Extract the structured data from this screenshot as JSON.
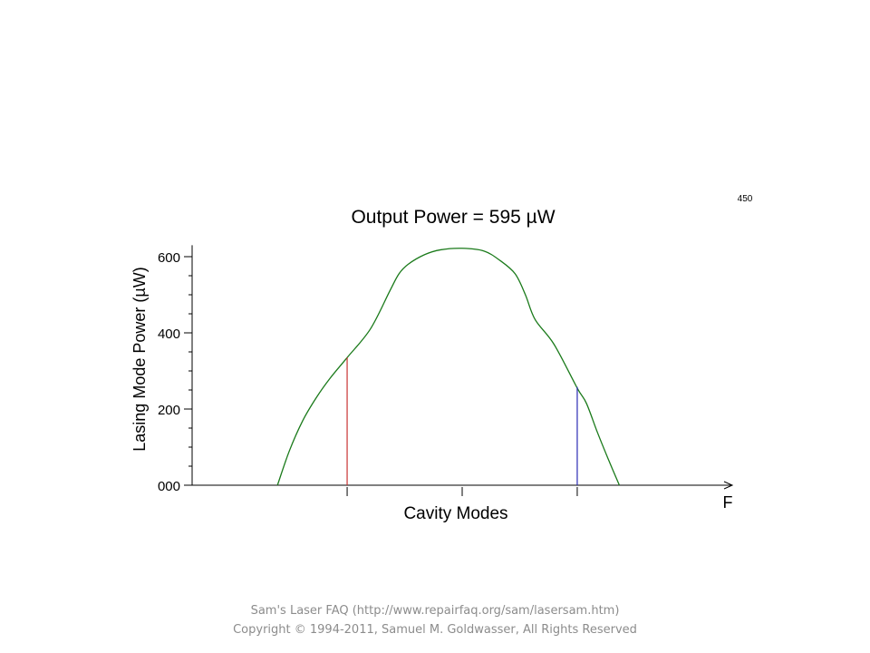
{
  "chart_data": {
    "type": "line",
    "title": "Output Power = 595 µW",
    "corner_label": "450",
    "ylabel": "Lasing Mode Power (µW)",
    "xlabel": "Cavity Modes",
    "x_axis_symbol": "F",
    "ylim": [
      0,
      630
    ],
    "xlim": [
      0,
      1
    ],
    "y_ticks": [
      {
        "value": 0,
        "label": "000"
      },
      {
        "value": 200,
        "label": "200"
      },
      {
        "value": 400,
        "label": "400"
      },
      {
        "value": 600,
        "label": "600"
      }
    ],
    "y_minor_step": 50,
    "x_tick_positions": [
      0.287,
      0.5,
      0.713
    ],
    "gain_curve": {
      "color": "#1a7a1a",
      "x": [
        0.158,
        0.18,
        0.205,
        0.23,
        0.255,
        0.287,
        0.33,
        0.366,
        0.383,
        0.4,
        0.43,
        0.46,
        0.5,
        0.54,
        0.57,
        0.598,
        0.617,
        0.635,
        0.67,
        0.713,
        0.73,
        0.75,
        0.77,
        0.791
      ],
      "y": [
        0,
        90,
        170,
        230,
        280,
        335,
        410,
        510,
        555,
        580,
        605,
        618,
        622,
        615,
        590,
        555,
        500,
        435,
        370,
        255,
        215,
        140,
        70,
        0
      ]
    },
    "modes": [
      {
        "x": 0.287,
        "y": 335,
        "color": "#c83232"
      },
      {
        "x": 0.713,
        "y": 258,
        "color": "#2a2ab4"
      }
    ]
  },
  "footer": {
    "line1": "Sam's Laser FAQ (http://www.repairfaq.org/sam/lasersam.htm)",
    "line2": "Copyright © 1994-2011, Samuel M. Goldwasser, All Rights Reserved"
  }
}
